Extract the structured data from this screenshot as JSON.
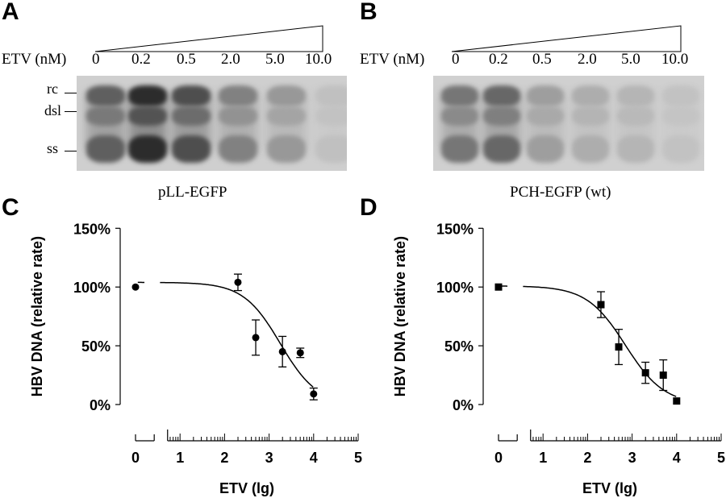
{
  "panels": {
    "A": {
      "letter": "A",
      "conc_label": "ETV (nM)",
      "concentrations": [
        "0",
        "0.2",
        "0.5",
        "2.0",
        "5.0",
        "10.0"
      ],
      "band_labels": [
        "rc",
        "dsl",
        "ss"
      ],
      "caption": "pLL-EGFP",
      "band_intensity": [
        0.62,
        0.92,
        0.72,
        0.42,
        0.28,
        0.05
      ]
    },
    "B": {
      "letter": "B",
      "conc_label": "ETV (nM)",
      "concentrations": [
        "0",
        "0.2",
        "0.5",
        "2.0",
        "5.0",
        "10.0"
      ],
      "caption": "PCH-EGFP (wt)",
      "band_intensity": [
        0.55,
        0.65,
        0.28,
        0.18,
        0.13,
        0.04
      ]
    }
  },
  "chart_data": [
    {
      "panel": "C",
      "type": "scatter",
      "xlabel": "ETV (lg)",
      "ylabel": "HBV DNA (relative rate)",
      "xlim": [
        0,
        5
      ],
      "ylim": [
        0,
        150
      ],
      "xticks": [
        "0",
        "1",
        "2",
        "3",
        "4",
        "5"
      ],
      "yticks": [
        "0%",
        "50%",
        "100%",
        "150%"
      ],
      "marker": "circle",
      "points": [
        {
          "x": 0,
          "y": 100,
          "err": 0
        },
        {
          "x": 2.3,
          "y": 104,
          "err": 7
        },
        {
          "x": 2.7,
          "y": 57,
          "err": 15
        },
        {
          "x": 3.3,
          "y": 45,
          "err": 13
        },
        {
          "x": 3.7,
          "y": 44,
          "err": 4
        },
        {
          "x": 4.0,
          "y": 9,
          "err": 5
        }
      ],
      "fit": {
        "top": 104,
        "bottom": 0,
        "logIC50": 3.25,
        "hill": 1.05,
        "x_range": [
          0.05,
          4.0
        ]
      }
    },
    {
      "panel": "D",
      "type": "scatter",
      "xlabel": "ETV (lg)",
      "ylabel": "HBV DNA (relative rate)",
      "xlim": [
        0,
        5
      ],
      "ylim": [
        0,
        150
      ],
      "xticks": [
        "0",
        "1",
        "2",
        "3",
        "4",
        "5"
      ],
      "yticks": [
        "0%",
        "50%",
        "100%",
        "150%"
      ],
      "marker": "square",
      "points": [
        {
          "x": 0,
          "y": 100,
          "err": 0
        },
        {
          "x": 2.3,
          "y": 85,
          "err": 11
        },
        {
          "x": 2.7,
          "y": 49,
          "err": 15
        },
        {
          "x": 3.3,
          "y": 27,
          "err": 9
        },
        {
          "x": 3.7,
          "y": 25,
          "err": 13
        },
        {
          "x": 4.0,
          "y": 3,
          "err": 0
        }
      ],
      "fit": {
        "top": 101,
        "bottom": 0,
        "logIC50": 2.85,
        "hill": 1.0,
        "x_range": [
          0.05,
          4.0
        ]
      }
    }
  ],
  "labels": {
    "C": "C",
    "D": "D"
  }
}
